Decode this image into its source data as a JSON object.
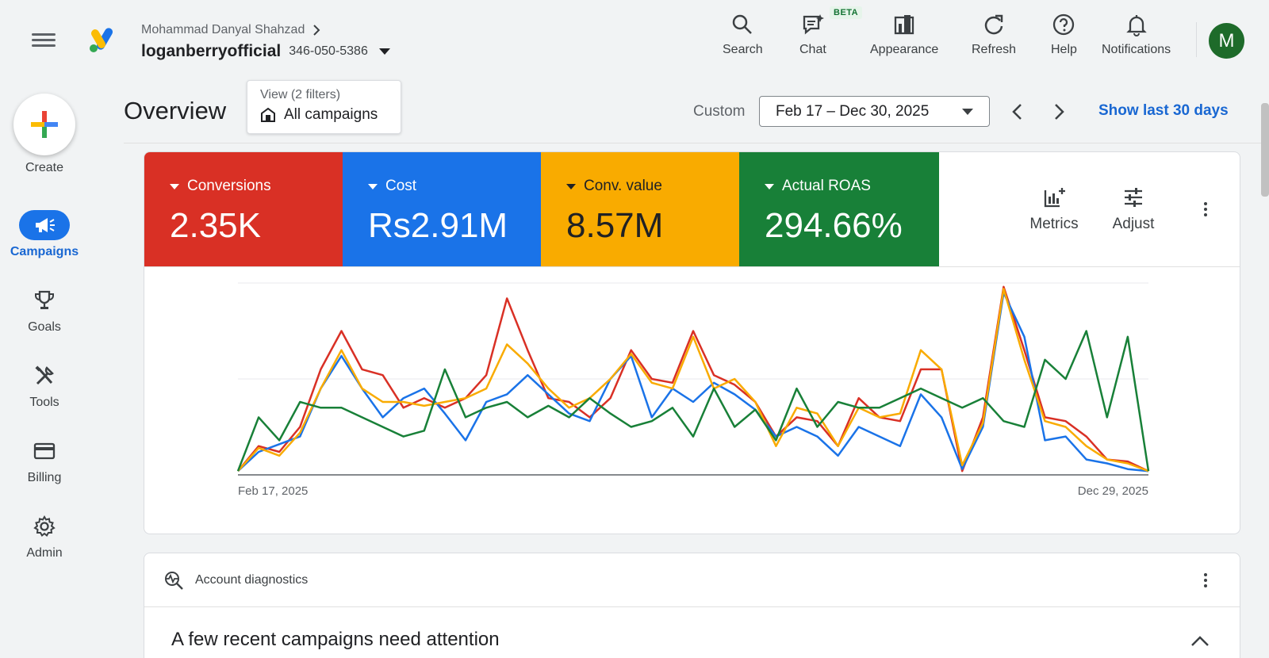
{
  "header": {
    "account_path": "Mohammad Danyal Shahzad",
    "account_name": "loganberryofficial",
    "account_id": "346-050-5386",
    "tools": [
      {
        "label": "Search",
        "icon": "search-icon"
      },
      {
        "label": "Chat",
        "icon": "chat-icon",
        "badge": "BETA"
      },
      {
        "label": "Appearance",
        "icon": "appearance-icon"
      },
      {
        "label": "Refresh",
        "icon": "refresh-icon"
      },
      {
        "label": "Help",
        "icon": "help-icon"
      },
      {
        "label": "Notifications",
        "icon": "bell-icon"
      }
    ],
    "avatar_letter": "M"
  },
  "sidebar": {
    "create_label": "Create",
    "items": [
      {
        "label": "Campaigns",
        "icon": "megaphone-icon",
        "active": true
      },
      {
        "label": "Goals",
        "icon": "trophy-icon"
      },
      {
        "label": "Tools",
        "icon": "tools-icon"
      },
      {
        "label": "Billing",
        "icon": "card-icon"
      },
      {
        "label": "Admin",
        "icon": "gear-icon"
      }
    ]
  },
  "overview": {
    "title": "Overview",
    "filter_view": "View (2 filters)",
    "filter_value": "All campaigns",
    "date_mode": "Custom",
    "date_range": "Feb 17 – Dec 30, 2025",
    "show_last": "Show last 30 days"
  },
  "metrics": {
    "tiles": [
      {
        "name": "Conversions",
        "value": "2.35K",
        "color": "#d93025"
      },
      {
        "name": "Cost",
        "value": "Rs2.91M",
        "color": "#1a73e8"
      },
      {
        "name": "Conv. value",
        "value": "8.57M",
        "color": "#f9ab00"
      },
      {
        "name": "Actual ROAS",
        "value": "294.66%",
        "color": "#188038"
      }
    ],
    "metrics_label": "Metrics",
    "adjust_label": "Adjust"
  },
  "chart_data": {
    "type": "line",
    "x_start_label": "Feb 17, 2025",
    "x_end_label": "Dec 29, 2025",
    "ylim": [
      0,
      100
    ],
    "grid": true,
    "series": [
      {
        "color": "#d93025",
        "values": [
          2,
          15,
          12,
          25,
          55,
          75,
          55,
          52,
          35,
          40,
          35,
          40,
          52,
          92,
          65,
          40,
          38,
          30,
          40,
          65,
          50,
          48,
          75,
          52,
          47,
          38,
          20,
          30,
          28,
          15,
          40,
          30,
          28,
          55,
          55,
          2,
          30,
          98,
          65,
          30,
          28,
          20,
          8,
          7,
          2
        ]
      },
      {
        "color": "#1a73e8",
        "values": [
          2,
          12,
          16,
          20,
          45,
          62,
          45,
          30,
          40,
          45,
          32,
          18,
          38,
          42,
          52,
          42,
          32,
          28,
          50,
          62,
          30,
          45,
          38,
          48,
          42,
          34,
          20,
          25,
          20,
          10,
          25,
          20,
          15,
          42,
          30,
          3,
          25,
          95,
          72,
          18,
          20,
          8,
          6,
          3,
          2
        ]
      },
      {
        "color": "#f9ab00",
        "values": [
          2,
          14,
          10,
          22,
          45,
          65,
          45,
          38,
          38,
          36,
          38,
          40,
          45,
          68,
          58,
          45,
          35,
          40,
          50,
          63,
          48,
          45,
          72,
          45,
          50,
          38,
          15,
          35,
          32,
          15,
          35,
          30,
          32,
          65,
          55,
          5,
          27,
          97,
          60,
          28,
          25,
          15,
          8,
          6,
          2
        ]
      },
      {
        "color": "#188038",
        "values": [
          2,
          30,
          18,
          38,
          35,
          35,
          30,
          25,
          20,
          23,
          55,
          30,
          35,
          38,
          30,
          36,
          30,
          40,
          32,
          25,
          28,
          35,
          20,
          45,
          25,
          34,
          18,
          45,
          25,
          38,
          35,
          35,
          40,
          45,
          40,
          35,
          40,
          28,
          25,
          60,
          50,
          75,
          30,
          72,
          2
        ]
      }
    ]
  },
  "diagnostics": {
    "header": "Account diagnostics",
    "title": "A few recent campaigns need attention"
  }
}
